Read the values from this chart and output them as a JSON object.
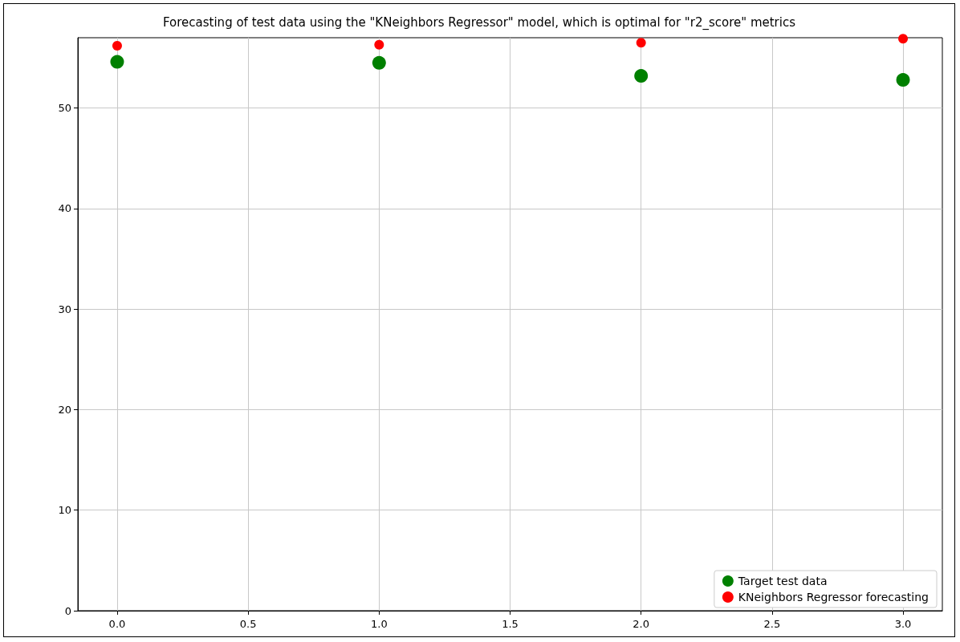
{
  "chart_data": {
    "type": "scatter",
    "title": "Forecasting of test data using the \"KNeighbors Regressor\" model, which is optimal for \"r2_score\" metrics",
    "x": [
      0,
      1,
      2,
      3
    ],
    "series": [
      {
        "name": "Target test data",
        "color": "#008000",
        "values": [
          54.6,
          54.5,
          53.2,
          52.8
        ]
      },
      {
        "name": "KNeighbors Regressor forecasting",
        "color": "#ff0000",
        "values": [
          56.2,
          56.3,
          56.5,
          56.9
        ]
      }
    ],
    "xlim": [
      -0.15,
      3.15
    ],
    "xticks": [
      {
        "value": 0,
        "label": "0.0"
      },
      {
        "value": 0.5,
        "label": "0.5"
      },
      {
        "value": 1,
        "label": "1.0"
      },
      {
        "value": 1.5,
        "label": "1.5"
      },
      {
        "value": 2,
        "label": "2.0"
      },
      {
        "value": 2.5,
        "label": "2.5"
      },
      {
        "value": 3,
        "label": "3.0"
      }
    ],
    "ylim": [
      0,
      57
    ],
    "yticks": [
      0,
      10,
      20,
      30,
      40,
      50
    ],
    "grid": true,
    "legend": "bottom right",
    "marker": "circle"
  }
}
